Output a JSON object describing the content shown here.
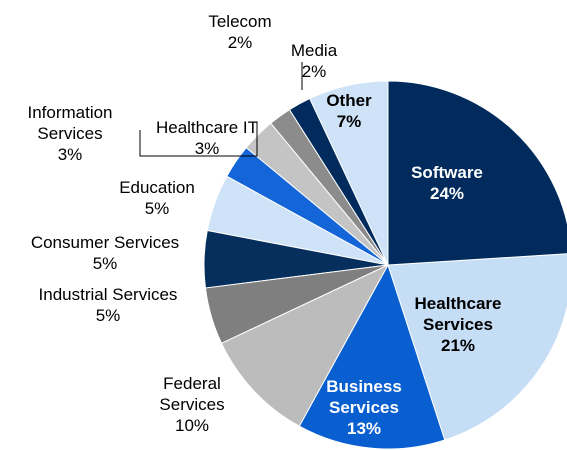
{
  "chart_data": {
    "type": "pie",
    "categories": [
      "Software",
      "Healthcare Services",
      "Business Services",
      "Federal Services",
      "Industrial Services",
      "Consumer Services",
      "Education",
      "Information Services",
      "Healthcare IT",
      "Telecom",
      "Media",
      "Other"
    ],
    "values": [
      24,
      21,
      13,
      10,
      5,
      5,
      5,
      3,
      3,
      2,
      2,
      7
    ],
    "value_labels": [
      "24%",
      "21%",
      "13%",
      "10%",
      "5%",
      "5%",
      "5%",
      "3%",
      "3%",
      "2%",
      "2%",
      "7%"
    ],
    "colors": [
      "#002b5c",
      "#c6ddf6",
      "#0a5fd0",
      "#bcbcbc",
      "#7f7f7f",
      "#062f5e",
      "#cfe3f8",
      "#1466d8",
      "#c4c4c4",
      "#8c8c8c",
      "#002b5c",
      "#cfe3f8"
    ]
  }
}
